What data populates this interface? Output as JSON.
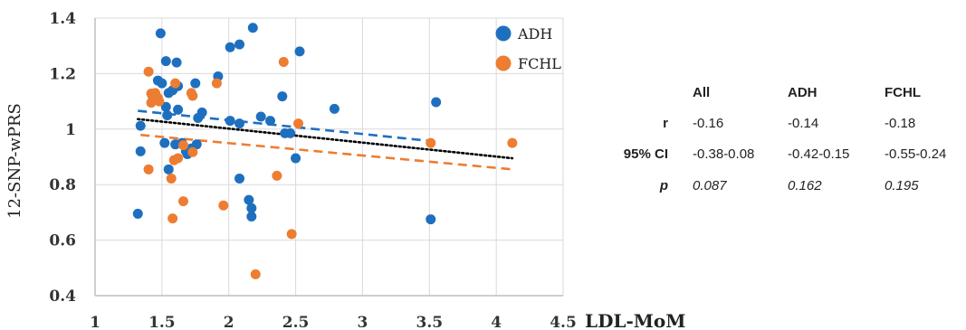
{
  "chart_data": {
    "type": "scatter",
    "xlabel": "LDL-MoM",
    "ylabel": "12-SNP-wPRS",
    "xlim": [
      1,
      4.5
    ],
    "ylim": [
      0.4,
      1.4
    ],
    "x_ticks": [
      1,
      1.5,
      2,
      2.5,
      3,
      3.5,
      4,
      4.5
    ],
    "y_ticks": [
      0.4,
      0.6,
      0.8,
      1,
      1.2,
      1.4
    ],
    "x_tick_labels": [
      "1",
      "1.5",
      "2",
      "2.5",
      "3",
      "3.5",
      "4",
      "4.5"
    ],
    "y_tick_labels": [
      "0.4",
      "0.6",
      "0.8",
      "1",
      "1.2",
      "1.4"
    ],
    "grid": true,
    "legend_position": "top-right",
    "series": [
      {
        "name": "ADH",
        "color": "#1f6fbf",
        "points": [
          [
            1.32,
            0.695
          ],
          [
            1.34,
            1.012
          ],
          [
            1.34,
            0.92
          ],
          [
            1.43,
            1.12
          ],
          [
            1.47,
            1.175
          ],
          [
            1.49,
            1.345
          ],
          [
            1.5,
            1.165
          ],
          [
            1.52,
            0.95
          ],
          [
            1.53,
            1.08
          ],
          [
            1.53,
            1.245
          ],
          [
            1.54,
            1.05
          ],
          [
            1.55,
            1.13
          ],
          [
            1.55,
            0.855
          ],
          [
            1.58,
            1.14
          ],
          [
            1.6,
            0.945
          ],
          [
            1.61,
            1.24
          ],
          [
            1.62,
            1.07
          ],
          [
            1.62,
            1.155
          ],
          [
            1.65,
            0.95
          ],
          [
            1.68,
            0.92
          ],
          [
            1.69,
            0.91
          ],
          [
            1.72,
            0.93
          ],
          [
            1.75,
            1.165
          ],
          [
            1.76,
            0.945
          ],
          [
            1.77,
            1.04
          ],
          [
            1.8,
            1.06
          ],
          [
            1.92,
            1.19
          ],
          [
            2.01,
            1.295
          ],
          [
            2.01,
            1.03
          ],
          [
            2.08,
            1.305
          ],
          [
            2.08,
            0.822
          ],
          [
            2.08,
            1.02
          ],
          [
            2.15,
            0.745
          ],
          [
            2.17,
            0.715
          ],
          [
            2.17,
            0.685
          ],
          [
            2.18,
            1.365
          ],
          [
            2.24,
            1.045
          ],
          [
            2.31,
            1.03
          ],
          [
            2.4,
            1.118
          ],
          [
            2.42,
            0.985
          ],
          [
            2.46,
            0.985
          ],
          [
            2.5,
            0.895
          ],
          [
            2.53,
            1.28
          ],
          [
            2.79,
            1.073
          ],
          [
            3.51,
            0.675
          ],
          [
            3.55,
            1.097
          ]
        ]
      },
      {
        "name": "FCHL",
        "color": "#ed7d31",
        "points": [
          [
            1.4,
            1.207
          ],
          [
            1.4,
            0.855
          ],
          [
            1.42,
            1.128
          ],
          [
            1.42,
            1.095
          ],
          [
            1.45,
            1.13
          ],
          [
            1.47,
            1.113
          ],
          [
            1.48,
            1.1
          ],
          [
            1.57,
            0.822
          ],
          [
            1.58,
            0.678
          ],
          [
            1.59,
            0.888
          ],
          [
            1.6,
            1.165
          ],
          [
            1.62,
            0.895
          ],
          [
            1.66,
            0.74
          ],
          [
            1.66,
            0.942
          ],
          [
            1.72,
            1.13
          ],
          [
            1.73,
            1.12
          ],
          [
            1.73,
            0.917
          ],
          [
            1.91,
            1.165
          ],
          [
            1.96,
            0.725
          ],
          [
            2.2,
            0.477
          ],
          [
            2.36,
            0.832
          ],
          [
            2.41,
            1.242
          ],
          [
            2.47,
            0.622
          ],
          [
            2.52,
            1.02
          ],
          [
            3.51,
            0.95
          ],
          [
            4.12,
            0.95
          ]
        ]
      }
    ],
    "trendlines": [
      {
        "series": "ADH",
        "style": "dashed",
        "color": "#1f6fbf",
        "x": [
          1.32,
          3.55
        ],
        "y": [
          1.066,
          0.955
        ]
      },
      {
        "series": "FCHL",
        "style": "dashed",
        "color": "#ed7d31",
        "x": [
          1.34,
          4.12
        ],
        "y": [
          0.979,
          0.855
        ]
      },
      {
        "series": "All",
        "style": "dotted",
        "color": "#000000",
        "x": [
          1.32,
          4.12
        ],
        "y": [
          1.036,
          0.895
        ]
      }
    ],
    "table": {
      "columns": [
        "All",
        "ADH",
        "FCHL"
      ],
      "rows": [
        {
          "label": "r",
          "values": [
            "-0.16",
            "-0.14",
            "-0.18"
          ],
          "italic": false
        },
        {
          "label": "95% CI",
          "values": [
            "-0.38-0.08",
            "-0.42-0.15",
            "-0.55-0.24"
          ],
          "italic": false
        },
        {
          "label": "p",
          "values": [
            "0.087",
            "0.162",
            "0.195"
          ],
          "italic": true
        }
      ]
    }
  }
}
